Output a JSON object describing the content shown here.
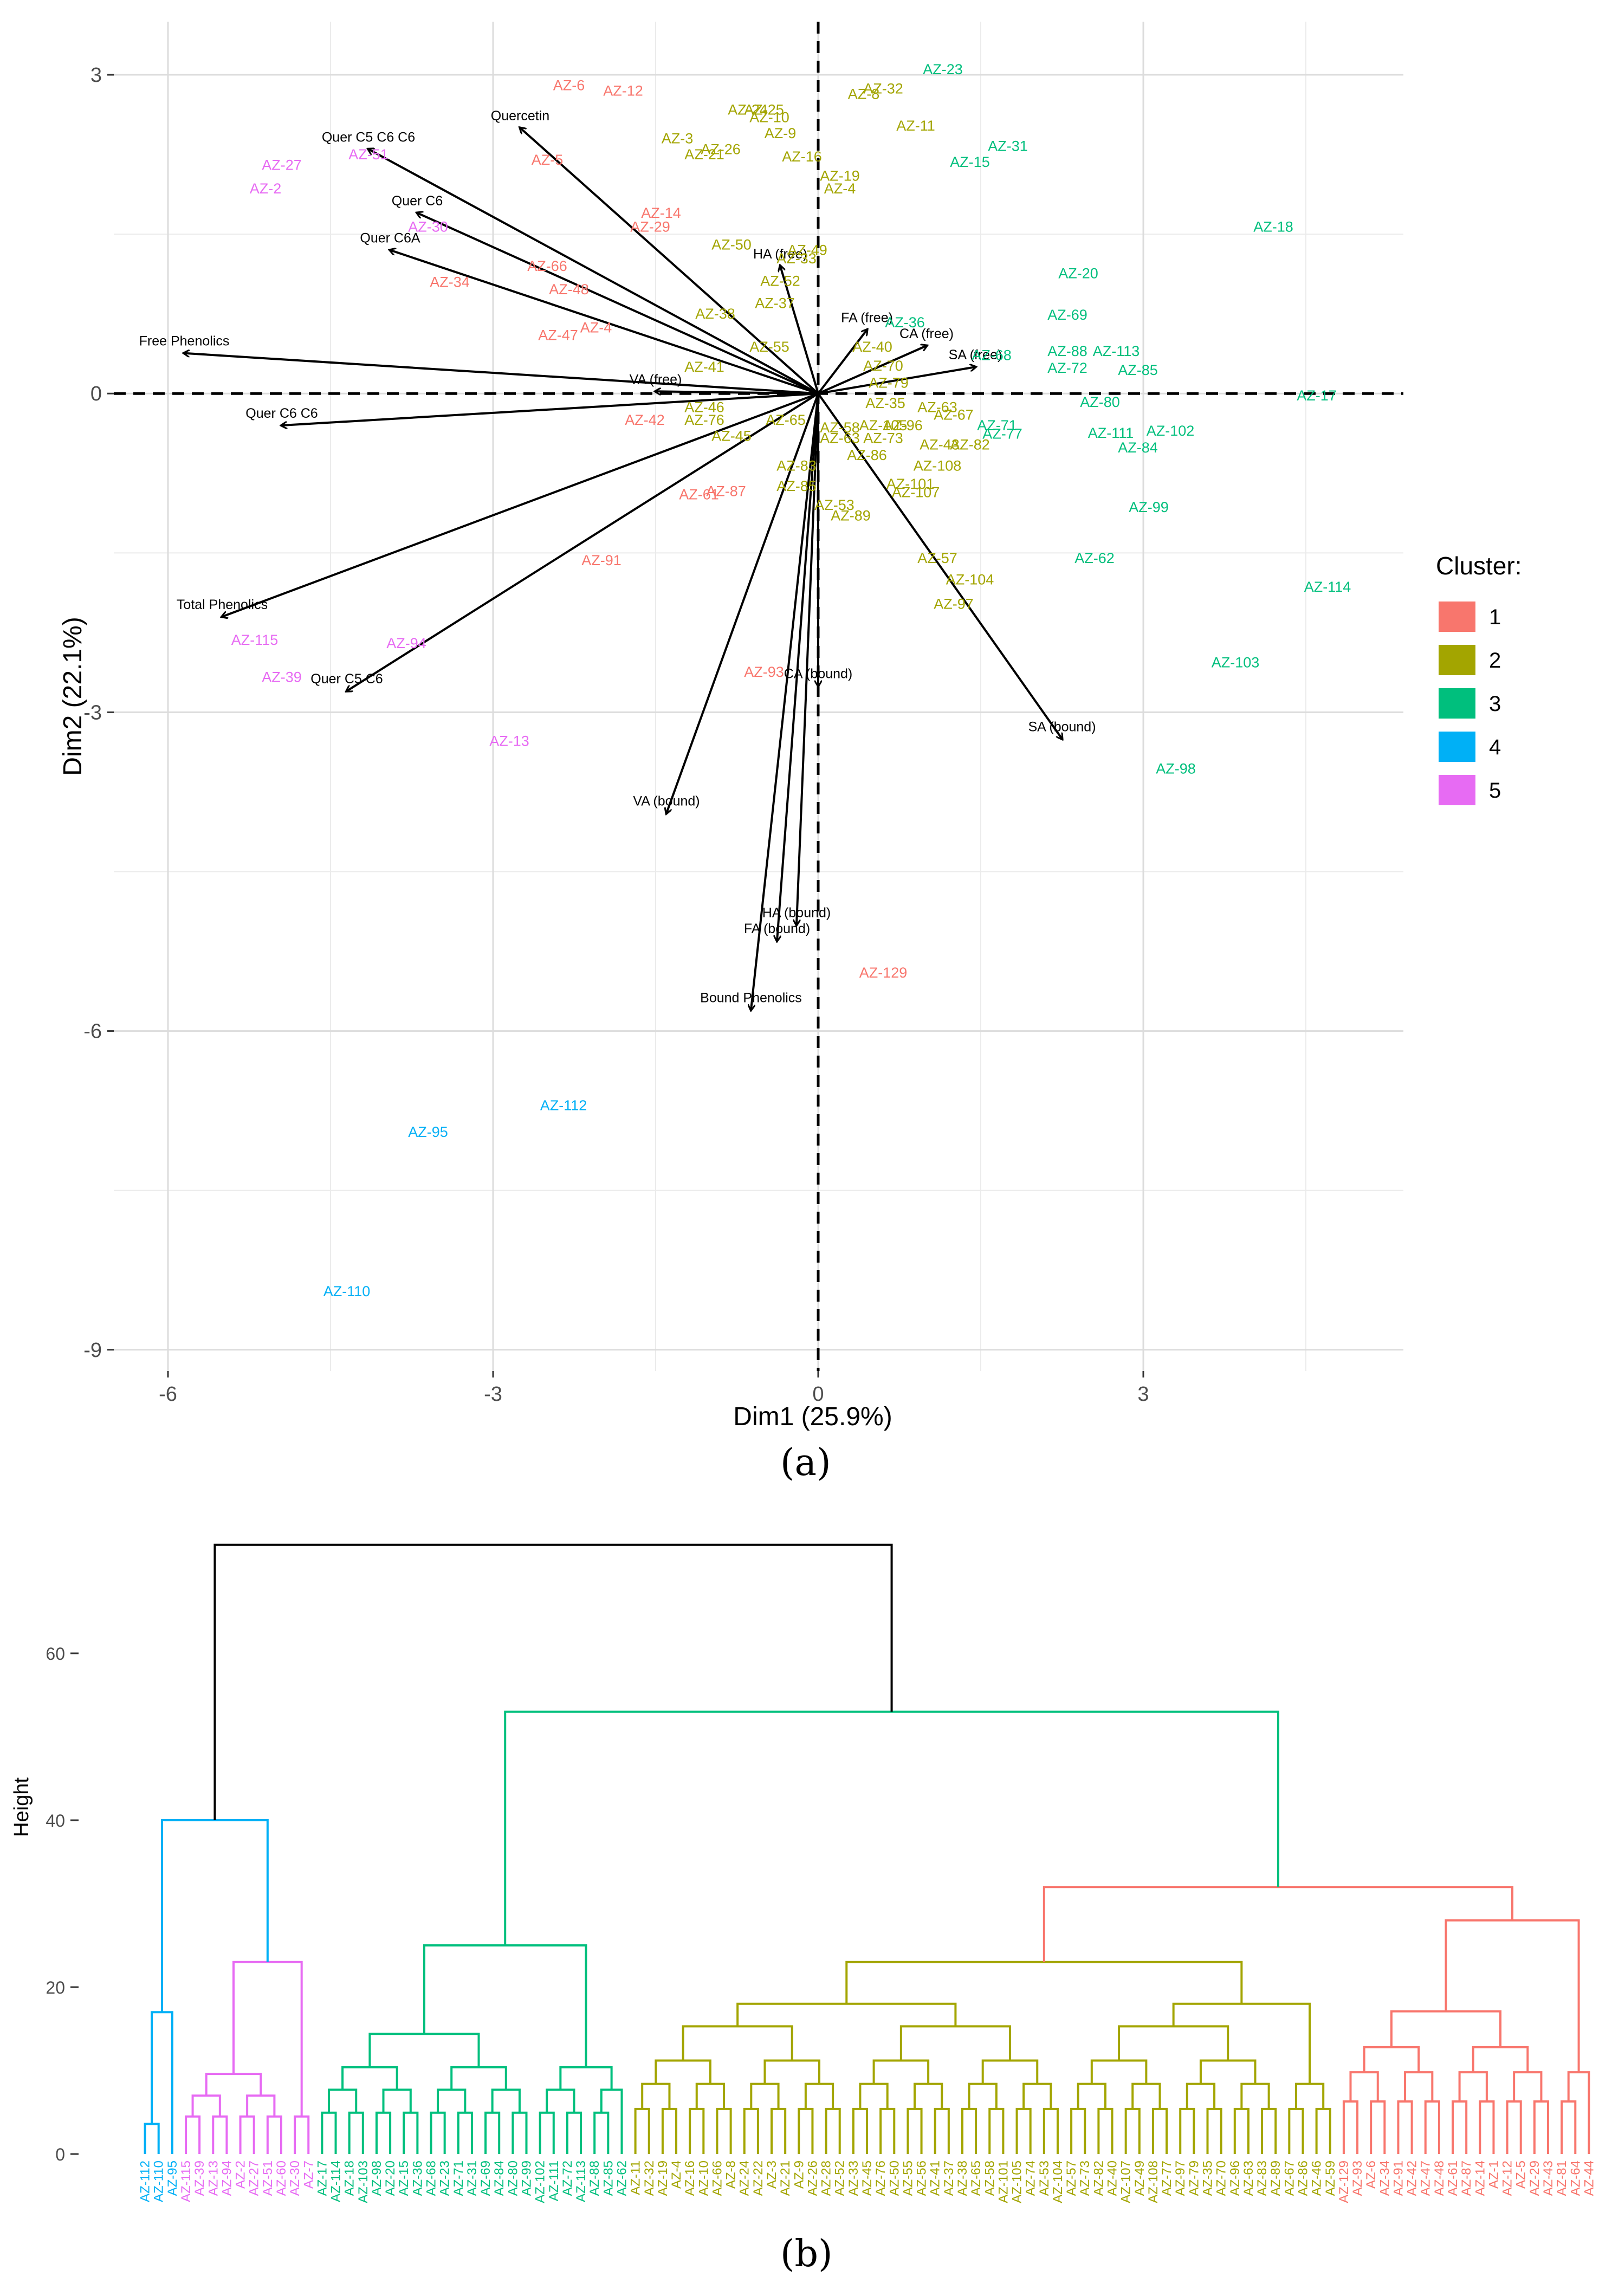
{
  "chart_data": [
    {
      "type": "scatter",
      "subtype": "pca-biplot",
      "xlabel": "Dim1 (25.9%)",
      "ylabel": "Dim2 (22.1%)",
      "xlim": [
        -6.5,
        5.4
      ],
      "ylim": [
        -9.2,
        3.5
      ],
      "xticks": [
        -6,
        -3,
        0,
        3
      ],
      "yticks": [
        3,
        0,
        -3,
        -6,
        -9
      ],
      "xtick_labels": [
        "-6",
        "-3",
        "0",
        "3"
      ],
      "ytick_labels": [
        "3",
        "0",
        "-3",
        "-6",
        "-9"
      ],
      "grid": true,
      "legend_position": "right",
      "legend_title": "Cluster:",
      "clusters": [
        {
          "name": "1",
          "color": "#F8766D"
        },
        {
          "name": "2",
          "color": "#A3A500"
        },
        {
          "name": "3",
          "color": "#00BF7D"
        },
        {
          "name": "4",
          "color": "#00B0F6"
        },
        {
          "name": "5",
          "color": "#E76BF3"
        }
      ],
      "vectors": [
        {
          "label": "Quercetin",
          "x": -2.75,
          "y": 2.5
        },
        {
          "label": "Quer C5 C6 C6",
          "x": -4.15,
          "y": 2.3
        },
        {
          "label": "Quer C6",
          "x": -3.7,
          "y": 1.7
        },
        {
          "label": "Quer C6A",
          "x": -3.95,
          "y": 1.35
        },
        {
          "label": "Free Phenolics",
          "x": -5.85,
          "y": 0.38
        },
        {
          "label": "Quer C6 C6",
          "x": -4.95,
          "y": -0.3
        },
        {
          "label": "Total Phenolics",
          "x": -5.5,
          "y": -2.1
        },
        {
          "label": "Quer C5 C6",
          "x": -4.35,
          "y": -2.8
        },
        {
          "label": "VA (free)",
          "x": -1.5,
          "y": 0.02
        },
        {
          "label": "HA (free)",
          "x": -0.35,
          "y": 1.2
        },
        {
          "label": "FA (free)",
          "x": 0.45,
          "y": 0.6
        },
        {
          "label": "CA (free)",
          "x": 1.0,
          "y": 0.45
        },
        {
          "label": "SA (free)",
          "x": 1.45,
          "y": 0.25
        },
        {
          "label": "CA (bound)",
          "x": 0.0,
          "y": -2.75
        },
        {
          "label": "SA (bound)",
          "x": 2.25,
          "y": -3.25
        },
        {
          "label": "VA (bound)",
          "x": -1.4,
          "y": -3.95
        },
        {
          "label": "HA (bound)",
          "x": -0.2,
          "y": -5.0
        },
        {
          "label": "FA (bound)",
          "x": -0.38,
          "y": -5.15
        },
        {
          "label": "Bound Phenolics",
          "x": -0.62,
          "y": -5.8
        }
      ],
      "points": [
        {
          "label": "AZ-6",
          "x": -2.3,
          "y": 2.9,
          "cluster": 1
        },
        {
          "label": "AZ-12",
          "x": -1.8,
          "y": 2.85,
          "cluster": 1
        },
        {
          "label": "AZ-5",
          "x": -2.5,
          "y": 2.2,
          "cluster": 1
        },
        {
          "label": "AZ-14",
          "x": -1.45,
          "y": 1.7,
          "cluster": 1
        },
        {
          "label": "AZ-29",
          "x": -1.55,
          "y": 1.57,
          "cluster": 1
        },
        {
          "label": "AZ-66",
          "x": -2.5,
          "y": 1.2,
          "cluster": 1
        },
        {
          "label": "AZ-34",
          "x": -3.4,
          "y": 1.05,
          "cluster": 1
        },
        {
          "label": "AZ-48",
          "x": -2.3,
          "y": 0.98,
          "cluster": 1
        },
        {
          "label": "AZ-47",
          "x": -2.4,
          "y": 0.55,
          "cluster": 1
        },
        {
          "label": "AZ-4",
          "x": -2.05,
          "y": 0.62,
          "cluster": 1
        },
        {
          "label": "AZ-42",
          "x": -1.6,
          "y": -0.25,
          "cluster": 1
        },
        {
          "label": "AZ-87",
          "x": -0.85,
          "y": -0.92,
          "cluster": 1
        },
        {
          "label": "AZ-61",
          "x": -1.1,
          "y": -0.95,
          "cluster": 1
        },
        {
          "label": "AZ-91",
          "x": -2.0,
          "y": -1.57,
          "cluster": 1
        },
        {
          "label": "AZ-93",
          "x": -0.5,
          "y": -2.62,
          "cluster": 1
        },
        {
          "label": "AZ-129",
          "x": 0.6,
          "y": -5.45,
          "cluster": 1
        },
        {
          "label": "AZ-32",
          "x": 0.6,
          "y": 2.87,
          "cluster": 2
        },
        {
          "label": "AZ-8",
          "x": 0.42,
          "y": 2.82,
          "cluster": 2
        },
        {
          "label": "AZ-25",
          "x": -0.5,
          "y": 2.67,
          "cluster": 2
        },
        {
          "label": "AZ-24",
          "x": -0.65,
          "y": 2.67,
          "cluster": 2
        },
        {
          "label": "AZ-10",
          "x": -0.45,
          "y": 2.6,
          "cluster": 2
        },
        {
          "label": "AZ-11",
          "x": 0.9,
          "y": 2.52,
          "cluster": 2
        },
        {
          "label": "AZ-9",
          "x": -0.35,
          "y": 2.45,
          "cluster": 2
        },
        {
          "label": "AZ-3",
          "x": -1.3,
          "y": 2.4,
          "cluster": 2
        },
        {
          "label": "AZ-26",
          "x": -0.9,
          "y": 2.3,
          "cluster": 2
        },
        {
          "label": "AZ-21",
          "x": -1.05,
          "y": 2.25,
          "cluster": 2
        },
        {
          "label": "AZ-16",
          "x": -0.15,
          "y": 2.23,
          "cluster": 2
        },
        {
          "label": "AZ-19",
          "x": 0.2,
          "y": 2.05,
          "cluster": 2
        },
        {
          "label": "AZ-4",
          "x": 0.2,
          "y": 1.93,
          "cluster": 2
        },
        {
          "label": "AZ-50",
          "x": -0.8,
          "y": 1.4,
          "cluster": 2
        },
        {
          "label": "AZ-49",
          "x": -0.1,
          "y": 1.35,
          "cluster": 2
        },
        {
          "label": "AZ-33",
          "x": -0.2,
          "y": 1.27,
          "cluster": 2
        },
        {
          "label": "AZ-52",
          "x": -0.35,
          "y": 1.06,
          "cluster": 2
        },
        {
          "label": "AZ-37",
          "x": -0.4,
          "y": 0.85,
          "cluster": 2
        },
        {
          "label": "AZ-38",
          "x": -0.95,
          "y": 0.75,
          "cluster": 2
        },
        {
          "label": "AZ-55",
          "x": -0.45,
          "y": 0.44,
          "cluster": 2
        },
        {
          "label": "AZ-40",
          "x": 0.5,
          "y": 0.44,
          "cluster": 2
        },
        {
          "label": "AZ-41",
          "x": -1.05,
          "y": 0.25,
          "cluster": 2
        },
        {
          "label": "AZ-70",
          "x": 0.6,
          "y": 0.26,
          "cluster": 2
        },
        {
          "label": "AZ-79",
          "x": 0.65,
          "y": 0.1,
          "cluster": 2
        },
        {
          "label": "AZ-35",
          "x": 0.62,
          "y": -0.09,
          "cluster": 2
        },
        {
          "label": "AZ-46",
          "x": -1.05,
          "y": -0.13,
          "cluster": 2
        },
        {
          "label": "AZ-76",
          "x": -1.05,
          "y": -0.25,
          "cluster": 2
        },
        {
          "label": "AZ-63",
          "x": 1.1,
          "y": -0.13,
          "cluster": 2
        },
        {
          "label": "AZ-67",
          "x": 1.25,
          "y": -0.2,
          "cluster": 2
        },
        {
          "label": "AZ-58",
          "x": 0.2,
          "y": -0.32,
          "cluster": 2
        },
        {
          "label": "AZ-105",
          "x": 0.6,
          "y": -0.3,
          "cluster": 2
        },
        {
          "label": "AZ-96",
          "x": 0.78,
          "y": -0.3,
          "cluster": 2
        },
        {
          "label": "AZ-45",
          "x": -0.8,
          "y": -0.4,
          "cluster": 2
        },
        {
          "label": "AZ-65",
          "x": -0.3,
          "y": -0.25,
          "cluster": 2
        },
        {
          "label": "AZ-63",
          "x": 0.2,
          "y": -0.42,
          "cluster": 2
        },
        {
          "label": "AZ-73",
          "x": 0.6,
          "y": -0.42,
          "cluster": 2
        },
        {
          "label": "AZ-43",
          "x": 1.12,
          "y": -0.48,
          "cluster": 2
        },
        {
          "label": "AZ-82",
          "x": 1.4,
          "y": -0.48,
          "cluster": 2
        },
        {
          "label": "AZ-86",
          "x": 0.45,
          "y": -0.58,
          "cluster": 2
        },
        {
          "label": "AZ-83",
          "x": -0.2,
          "y": -0.68,
          "cluster": 2
        },
        {
          "label": "AZ-108",
          "x": 1.1,
          "y": -0.68,
          "cluster": 2
        },
        {
          "label": "AZ-85",
          "x": -0.2,
          "y": -0.87,
          "cluster": 2
        },
        {
          "label": "AZ-101",
          "x": 0.85,
          "y": -0.85,
          "cluster": 2
        },
        {
          "label": "AZ-107",
          "x": 0.9,
          "y": -0.93,
          "cluster": 2
        },
        {
          "label": "AZ-53",
          "x": 0.15,
          "y": -1.05,
          "cluster": 2
        },
        {
          "label": "AZ-89",
          "x": 0.3,
          "y": -1.15,
          "cluster": 2
        },
        {
          "label": "AZ-57",
          "x": 1.1,
          "y": -1.55,
          "cluster": 2
        },
        {
          "label": "AZ-104",
          "x": 1.4,
          "y": -1.75,
          "cluster": 2
        },
        {
          "label": "AZ-97",
          "x": 1.25,
          "y": -1.98,
          "cluster": 2
        },
        {
          "label": "AZ-23",
          "x": 1.15,
          "y": 3.05,
          "cluster": 3
        },
        {
          "label": "AZ-31",
          "x": 1.75,
          "y": 2.33,
          "cluster": 3
        },
        {
          "label": "AZ-15",
          "x": 1.4,
          "y": 2.18,
          "cluster": 3
        },
        {
          "label": "AZ-18",
          "x": 4.2,
          "y": 1.57,
          "cluster": 3
        },
        {
          "label": "AZ-20",
          "x": 2.4,
          "y": 1.13,
          "cluster": 3
        },
        {
          "label": "AZ-69",
          "x": 2.3,
          "y": 0.74,
          "cluster": 3
        },
        {
          "label": "AZ-36",
          "x": 0.8,
          "y": 0.67,
          "cluster": 3
        },
        {
          "label": "AZ-88",
          "x": 2.3,
          "y": 0.4,
          "cluster": 3
        },
        {
          "label": "AZ-113",
          "x": 2.75,
          "y": 0.4,
          "cluster": 3
        },
        {
          "label": "AZ-68",
          "x": 1.6,
          "y": 0.36,
          "cluster": 3
        },
        {
          "label": "AZ-72",
          "x": 2.3,
          "y": 0.24,
          "cluster": 3
        },
        {
          "label": "AZ-85",
          "x": 2.95,
          "y": 0.22,
          "cluster": 3
        },
        {
          "label": "AZ-80",
          "x": 2.6,
          "y": -0.08,
          "cluster": 3
        },
        {
          "label": "AZ-17",
          "x": 4.6,
          "y": -0.02,
          "cluster": 3
        },
        {
          "label": "AZ-71",
          "x": 1.65,
          "y": -0.3,
          "cluster": 3
        },
        {
          "label": "AZ-77",
          "x": 1.7,
          "y": -0.38,
          "cluster": 3
        },
        {
          "label": "AZ-102",
          "x": 3.25,
          "y": -0.35,
          "cluster": 3
        },
        {
          "label": "AZ-111",
          "x": 2.7,
          "y": -0.37,
          "cluster": 3
        },
        {
          "label": "AZ-84",
          "x": 2.95,
          "y": -0.51,
          "cluster": 3
        },
        {
          "label": "AZ-99",
          "x": 3.05,
          "y": -1.07,
          "cluster": 3
        },
        {
          "label": "AZ-62",
          "x": 2.55,
          "y": -1.55,
          "cluster": 3
        },
        {
          "label": "AZ-114",
          "x": 4.7,
          "y": -1.82,
          "cluster": 3
        },
        {
          "label": "AZ-103",
          "x": 3.85,
          "y": -2.53,
          "cluster": 3
        },
        {
          "label": "AZ-98",
          "x": 3.3,
          "y": -3.53,
          "cluster": 3
        },
        {
          "label": "AZ-112",
          "x": -2.35,
          "y": -6.7,
          "cluster": 4
        },
        {
          "label": "AZ-95",
          "x": -3.6,
          "y": -6.95,
          "cluster": 4
        },
        {
          "label": "AZ-110",
          "x": -4.35,
          "y": -8.45,
          "cluster": 4
        },
        {
          "label": "AZ-27",
          "x": -4.95,
          "y": 2.15,
          "cluster": 5
        },
        {
          "label": "AZ-51",
          "x": -4.15,
          "y": 2.25,
          "cluster": 5
        },
        {
          "label": "AZ-2",
          "x": -5.1,
          "y": 1.93,
          "cluster": 5
        },
        {
          "label": "AZ-30",
          "x": -3.6,
          "y": 1.57,
          "cluster": 5
        },
        {
          "label": "AZ-115",
          "x": -5.2,
          "y": -2.32,
          "cluster": 5
        },
        {
          "label": "AZ-94",
          "x": -3.8,
          "y": -2.35,
          "cluster": 5
        },
        {
          "label": "AZ-39",
          "x": -4.95,
          "y": -2.67,
          "cluster": 5
        },
        {
          "label": "AZ-13",
          "x": -2.85,
          "y": -3.27,
          "cluster": 5
        }
      ]
    },
    {
      "type": "dendrogram",
      "ylabel": "Height",
      "ylim": [
        0,
        75
      ],
      "yticks": [
        0,
        20,
        40,
        60
      ],
      "ytick_labels": [
        "0",
        "20",
        "40",
        "60"
      ],
      "root_color": "#000000",
      "clusters": [
        {
          "name": "4",
          "color": "#00B0F6",
          "leaves": [
            "AZ-112",
            "AZ-110",
            "AZ-95"
          ],
          "inner_heights": [
            17,
            8
          ],
          "join_height": 40
        },
        {
          "name": "5",
          "color": "#E76BF3",
          "leaves": [
            "AZ-115",
            "AZ-39",
            "AZ-13",
            "AZ-94",
            "AZ-2",
            "AZ-27",
            "AZ-51",
            "AZ-60",
            "AZ-30",
            "AZ-7"
          ],
          "inner_heights": [
            23,
            18,
            14,
            12,
            10
          ],
          "join_height": 40
        },
        {
          "name": "3",
          "color": "#00BF7D",
          "leaves": [
            "AZ-17",
            "AZ-114",
            "AZ-18",
            "AZ-103",
            "AZ-98",
            "AZ-20",
            "AZ-15",
            "AZ-36",
            "AZ-68",
            "AZ-23",
            "AZ-71",
            "AZ-31",
            "AZ-69",
            "AZ-84",
            "AZ-80",
            "AZ-99",
            "AZ-102",
            "AZ-111",
            "AZ-72",
            "AZ-113",
            "AZ-88",
            "AZ-85",
            "AZ-62"
          ],
          "inner_heights": [
            25,
            20,
            16,
            13,
            11
          ],
          "join_height": 53
        },
        {
          "name": "2",
          "color": "#A3A500",
          "leaves": [
            "AZ-11",
            "AZ-32",
            "AZ-19",
            "AZ-4",
            "AZ-16",
            "AZ-10",
            "AZ-66",
            "AZ-8",
            "AZ-24",
            "AZ-22",
            "AZ-3",
            "AZ-21",
            "AZ-9",
            "AZ-26",
            "AZ-28",
            "AZ-52",
            "AZ-33",
            "AZ-45",
            "AZ-76",
            "AZ-50",
            "AZ-55",
            "AZ-56",
            "AZ-41",
            "AZ-37",
            "AZ-38",
            "AZ-65",
            "AZ-58",
            "AZ-101",
            "AZ-105",
            "AZ-74",
            "AZ-53",
            "AZ-104",
            "AZ-57",
            "AZ-73",
            "AZ-82",
            "AZ-40",
            "AZ-107",
            "AZ-49",
            "AZ-108",
            "AZ-77",
            "AZ-97",
            "AZ-79",
            "AZ-35",
            "AZ-70",
            "AZ-96",
            "AZ-63",
            "AZ-83",
            "AZ-89",
            "AZ-67",
            "AZ-86",
            "AZ-46",
            "AZ-59"
          ],
          "inner_heights": [
            23,
            18,
            17,
            14,
            12
          ],
          "join_height": 32
        },
        {
          "name": "1",
          "color": "#F8766D",
          "leaves": [
            "AZ-129",
            "AZ-93",
            "AZ-6",
            "AZ-34",
            "AZ-91",
            "AZ-42",
            "AZ-47",
            "AZ-48",
            "AZ-61",
            "AZ-87",
            "AZ-14",
            "AZ-1",
            "AZ-12",
            "AZ-5",
            "AZ-29",
            "AZ-43",
            "AZ-81",
            "AZ-64",
            "AZ-44"
          ],
          "inner_heights": [
            28,
            22,
            19,
            16,
            14
          ],
          "join_height": 32
        }
      ],
      "merges": [
        {
          "children": [
            "4",
            "5"
          ],
          "height": 40
        },
        {
          "children": [
            "3",
            "2+1"
          ],
          "height": 53
        },
        {
          "children": [
            "2",
            "1"
          ],
          "height": 32
        },
        {
          "children": [
            "4+5",
            "3+2+1"
          ],
          "height": 73
        }
      ]
    }
  ],
  "labels": {
    "a": "(a)",
    "b": "(b)",
    "legend_title": "Cluster:"
  }
}
